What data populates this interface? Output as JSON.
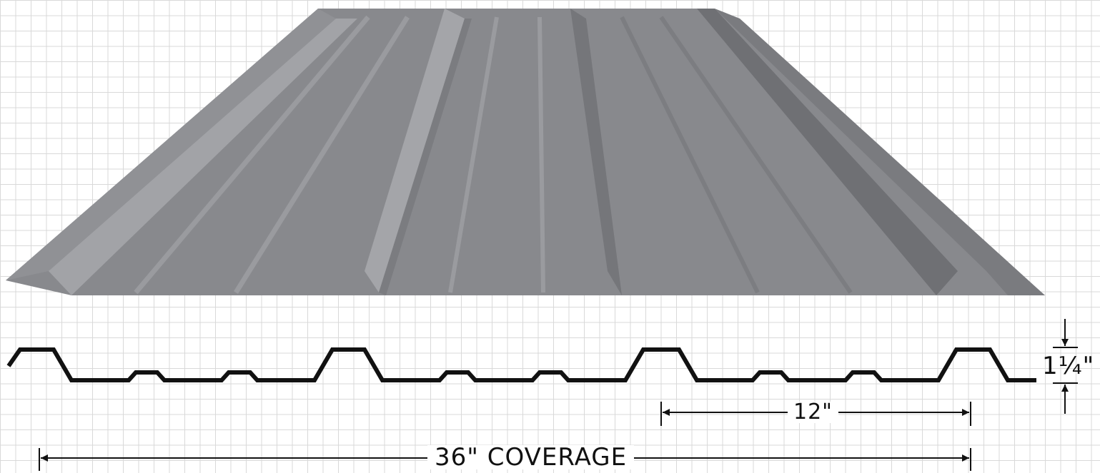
{
  "diagram": {
    "labels": {
      "coverage": "36\" COVERAGE",
      "rib_spacing": "12\"",
      "rib_height": "1¼\""
    },
    "colors": {
      "panel_base": "#88898d",
      "panel_light": "#a2a3a7",
      "panel_dark": "#6f7074",
      "profile_stroke": "#111111",
      "grid": "#d9d9d9"
    }
  }
}
